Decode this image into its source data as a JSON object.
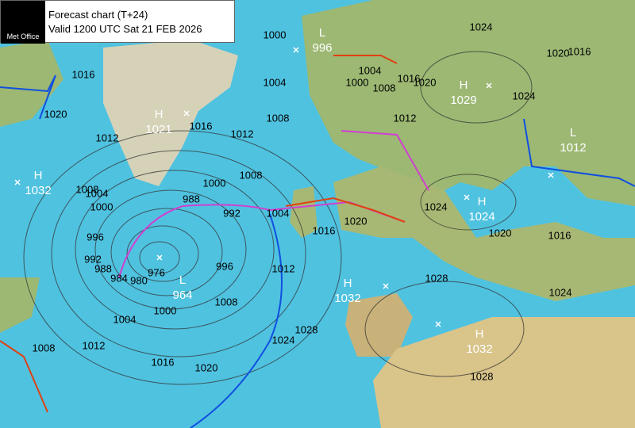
{
  "header": {
    "logo": "Met Office",
    "title": "Forecast chart (T+24)",
    "valid": "Valid 1200 UTC Sat 21 FEB 2026"
  },
  "centers": [
    {
      "type": "L",
      "pressure": 996
    },
    {
      "type": "H",
      "pressure": 1029
    },
    {
      "type": "H",
      "pressure": 1021
    },
    {
      "type": "L",
      "pressure": 1012
    },
    {
      "type": "H",
      "pressure": 1032
    },
    {
      "type": "H",
      "pressure": 1024
    },
    {
      "type": "L",
      "pressure": 964
    },
    {
      "type": "H",
      "pressure": 1032
    },
    {
      "type": "H",
      "pressure": 1032
    }
  ],
  "isobar_labels": [
    1000,
    1004,
    1008,
    1004,
    1000,
    1008,
    1016,
    1020,
    1024,
    1020,
    1016,
    1024,
    1012,
    1016,
    1020,
    1012,
    1016,
    1012,
    1008,
    1000,
    988,
    992,
    1004,
    1008,
    1004,
    1000,
    996,
    992,
    988,
    984,
    980,
    976,
    996,
    1008,
    1000,
    1004,
    1012,
    1016,
    1020,
    1024,
    1028,
    1012,
    1016,
    1020,
    1024,
    1020,
    1016,
    1028,
    1024,
    1028,
    1008
  ]
}
